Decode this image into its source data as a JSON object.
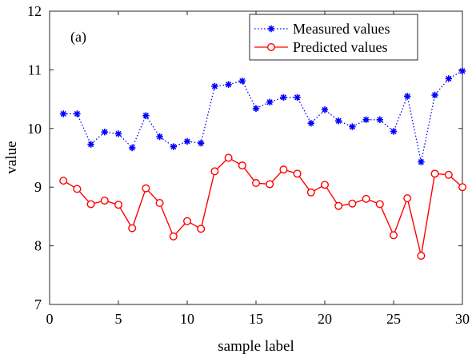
{
  "chart_data": {
    "type": "line",
    "panel_label": "(a)",
    "xlabel": "sample label",
    "ylabel": "value",
    "xlim": [
      0,
      30
    ],
    "ylim": [
      7,
      12
    ],
    "xticks": [
      0,
      5,
      10,
      15,
      20,
      25,
      30
    ],
    "yticks": [
      7,
      8,
      9,
      10,
      11,
      12
    ],
    "grid": false,
    "legend_position": "top-right",
    "x": [
      1,
      2,
      3,
      4,
      5,
      6,
      7,
      8,
      9,
      10,
      11,
      12,
      13,
      14,
      15,
      16,
      17,
      18,
      19,
      20,
      21,
      22,
      23,
      24,
      25,
      26,
      27,
      28,
      29,
      30
    ],
    "series": [
      {
        "name": "Measured values",
        "color": "#0000ff",
        "line_style": "dotted",
        "marker": "asterisk",
        "values": [
          10.25,
          10.25,
          9.73,
          9.94,
          9.91,
          9.67,
          10.22,
          9.86,
          9.69,
          9.78,
          9.75,
          10.72,
          10.75,
          10.81,
          10.34,
          10.45,
          10.53,
          10.53,
          10.09,
          10.32,
          10.13,
          10.03,
          10.15,
          10.15,
          9.95,
          10.55,
          9.43,
          10.57,
          10.85,
          10.98
        ]
      },
      {
        "name": "Predicted values",
        "color": "#ff0000",
        "line_style": "solid",
        "marker": "circle",
        "values": [
          9.11,
          8.97,
          8.71,
          8.77,
          8.7,
          8.3,
          8.98,
          8.73,
          8.16,
          8.42,
          8.29,
          9.27,
          9.5,
          9.37,
          9.07,
          9.05,
          9.3,
          9.23,
          8.91,
          9.04,
          8.68,
          8.72,
          8.8,
          8.71,
          8.18,
          8.81,
          7.83,
          9.23,
          9.21,
          9.0
        ]
      }
    ]
  }
}
